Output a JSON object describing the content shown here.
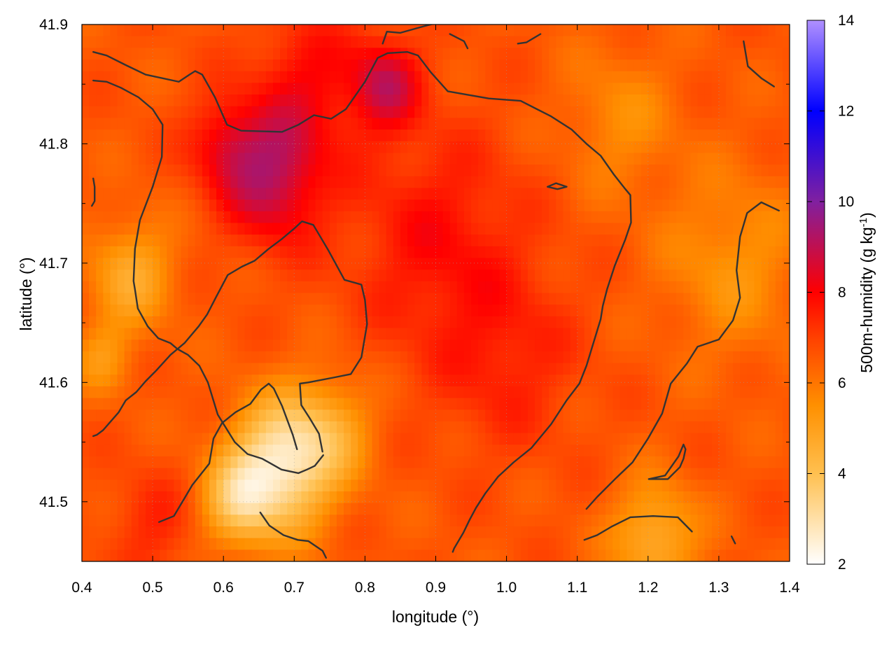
{
  "chart_data": {
    "type": "heatmap",
    "title": "",
    "xlabel": "longitude (°)",
    "ylabel": "latitude (°)",
    "colorbar_label": "500m-humidity (g kg",
    "colorbar_label_sup": "-1",
    "colorbar_label_end": ")",
    "xlim": [
      0.4,
      1.4
    ],
    "ylim": [
      41.45,
      41.9
    ],
    "clim": [
      2,
      14
    ],
    "xticks": [
      "0.4",
      "0.5",
      "0.6",
      "0.7",
      "0.8",
      "0.9",
      "1.0",
      "1.1",
      "1.2",
      "1.3",
      "1.4"
    ],
    "yticks": [
      "41.5",
      "41.6",
      "41.7",
      "41.8",
      "41.9"
    ],
    "cticks": [
      "2",
      "4",
      "6",
      "8",
      "10",
      "12",
      "14"
    ],
    "grid": true,
    "colormap": [
      {
        "v": 2,
        "c": "#ffffff"
      },
      {
        "v": 4,
        "c": "#ffc050"
      },
      {
        "v": 5.5,
        "c": "#ff9000"
      },
      {
        "v": 7,
        "c": "#ff4000"
      },
      {
        "v": 8,
        "c": "#ff0000"
      },
      {
        "v": 10,
        "c": "#8020a0"
      },
      {
        "v": 12,
        "c": "#0000ff"
      },
      {
        "v": 14,
        "c": "#b090ff"
      }
    ],
    "humidity_field": {
      "base": 6.6,
      "features": [
        {
          "lon": 0.67,
          "lat": 41.77,
          "r": 0.07,
          "amp": 2.4
        },
        {
          "lon": 0.83,
          "lat": 41.85,
          "r": 0.05,
          "amp": 2.0
        },
        {
          "lon": 0.6,
          "lat": 41.8,
          "r": 0.05,
          "amp": 1.4
        },
        {
          "lon": 0.72,
          "lat": 41.85,
          "r": 0.08,
          "amp": 1.3
        },
        {
          "lon": 0.9,
          "lat": 41.72,
          "r": 0.12,
          "amp": 1.2
        },
        {
          "lon": 1.0,
          "lat": 41.62,
          "r": 0.1,
          "amp": 0.9
        },
        {
          "lon": 0.68,
          "lat": 41.53,
          "r": 0.07,
          "amp": -3.8
        },
        {
          "lon": 0.62,
          "lat": 41.5,
          "r": 0.05,
          "amp": -2.2
        },
        {
          "lon": 0.75,
          "lat": 41.56,
          "r": 0.06,
          "amp": -1.6
        },
        {
          "lon": 0.47,
          "lat": 41.69,
          "r": 0.06,
          "amp": -1.8
        },
        {
          "lon": 0.43,
          "lat": 41.62,
          "r": 0.04,
          "amp": -1.2
        },
        {
          "lon": 1.21,
          "lat": 41.47,
          "r": 0.06,
          "amp": -2.0
        },
        {
          "lon": 1.32,
          "lat": 41.7,
          "r": 0.1,
          "amp": -1.2
        },
        {
          "lon": 1.16,
          "lat": 41.82,
          "r": 0.08,
          "amp": -1.0
        },
        {
          "lon": 0.5,
          "lat": 41.48,
          "r": 0.06,
          "amp": 0.8
        }
      ]
    },
    "contours": [
      [
        [
          0.416,
          41.877
        ],
        [
          0.435,
          41.874
        ],
        [
          0.462,
          41.866
        ],
        [
          0.49,
          41.858
        ],
        [
          0.537,
          41.852
        ],
        [
          0.552,
          41.858
        ],
        [
          0.56,
          41.861
        ],
        [
          0.57,
          41.858
        ],
        [
          0.588,
          41.839
        ],
        [
          0.605,
          41.816
        ],
        [
          0.625,
          41.811
        ],
        [
          0.683,
          41.81
        ],
        [
          0.706,
          41.816
        ],
        [
          0.728,
          41.824
        ],
        [
          0.752,
          41.821
        ],
        [
          0.773,
          41.829
        ],
        [
          0.8,
          41.852
        ],
        [
          0.818,
          41.872
        ],
        [
          0.832,
          41.876
        ],
        [
          0.86,
          41.877
        ],
        [
          0.875,
          41.874
        ],
        [
          0.893,
          41.86
        ],
        [
          0.917,
          41.844
        ],
        [
          0.975,
          41.838
        ],
        [
          1.02,
          41.836
        ],
        [
          1.063,
          41.823
        ],
        [
          1.092,
          41.812
        ],
        [
          1.113,
          41.8
        ],
        [
          1.133,
          41.79
        ],
        [
          1.152,
          41.774
        ],
        [
          1.168,
          41.762
        ],
        [
          1.175,
          41.757
        ],
        [
          1.176,
          41.734
        ],
        [
          1.168,
          41.72
        ],
        [
          1.153,
          41.698
        ],
        [
          1.142,
          41.678
        ],
        [
          1.136,
          41.664
        ],
        [
          1.133,
          41.653
        ],
        [
          1.113,
          41.614
        ],
        [
          1.103,
          41.599
        ],
        [
          1.085,
          41.585
        ],
        [
          1.063,
          41.565
        ],
        [
          1.035,
          41.545
        ],
        [
          1.01,
          41.533
        ],
        [
          0.988,
          41.521
        ],
        [
          0.97,
          41.507
        ],
        [
          0.957,
          41.495
        ],
        [
          0.948,
          41.485
        ],
        [
          0.939,
          41.474
        ],
        [
          0.926,
          41.461
        ],
        [
          0.924,
          41.458
        ]
      ],
      [
        [
          0.416,
          41.853
        ],
        [
          0.435,
          41.852
        ],
        [
          0.455,
          41.847
        ],
        [
          0.48,
          41.839
        ],
        [
          0.5,
          41.829
        ],
        [
          0.514,
          41.816
        ],
        [
          0.513,
          41.789
        ],
        [
          0.5,
          41.764
        ],
        [
          0.482,
          41.736
        ],
        [
          0.475,
          41.712
        ],
        [
          0.473,
          41.685
        ],
        [
          0.475,
          41.678
        ],
        [
          0.479,
          41.662
        ],
        [
          0.493,
          41.647
        ],
        [
          0.508,
          41.637
        ],
        [
          0.525,
          41.633
        ],
        [
          0.535,
          41.628
        ],
        [
          0.55,
          41.623
        ],
        [
          0.566,
          41.614
        ],
        [
          0.578,
          41.6
        ],
        [
          0.592,
          41.573
        ],
        [
          0.616,
          41.55
        ],
        [
          0.634,
          41.54
        ],
        [
          0.655,
          41.536
        ],
        [
          0.682,
          41.527
        ],
        [
          0.706,
          41.524
        ],
        [
          0.718,
          41.527
        ],
        [
          0.729,
          41.53
        ],
        [
          0.741,
          41.539
        ]
      ],
      [
        [
          0.416,
          41.771
        ],
        [
          0.418,
          41.764
        ],
        [
          0.418,
          41.752
        ],
        [
          0.414,
          41.748
        ]
      ],
      [
        [
          0.416,
          41.555
        ],
        [
          0.421,
          41.556
        ],
        [
          0.43,
          41.56
        ],
        [
          0.452,
          41.575
        ],
        [
          0.462,
          41.585
        ],
        [
          0.477,
          41.592
        ],
        [
          0.49,
          41.601
        ],
        [
          0.505,
          41.61
        ],
        [
          0.525,
          41.623
        ],
        [
          0.545,
          41.633
        ],
        [
          0.565,
          41.647
        ],
        [
          0.577,
          41.657
        ],
        [
          0.59,
          41.672
        ],
        [
          0.606,
          41.69
        ],
        [
          0.626,
          41.697
        ],
        [
          0.644,
          41.702
        ],
        [
          0.664,
          41.712
        ],
        [
          0.682,
          41.72
        ],
        [
          0.7,
          41.729
        ],
        [
          0.711,
          41.735
        ],
        [
          0.727,
          41.732
        ],
        [
          0.748,
          41.711
        ],
        [
          0.771,
          41.686
        ],
        [
          0.795,
          41.682
        ],
        [
          0.8,
          41.669
        ],
        [
          0.803,
          41.649
        ],
        [
          0.795,
          41.621
        ],
        [
          0.78,
          41.607
        ],
        [
          0.755,
          41.604
        ],
        [
          0.72,
          41.6
        ],
        [
          0.708,
          41.599
        ],
        [
          0.71,
          41.581
        ],
        [
          0.722,
          41.57
        ],
        [
          0.735,
          41.557
        ],
        [
          0.74,
          41.542
        ]
      ],
      [
        [
          0.509,
          41.483
        ],
        [
          0.53,
          41.488
        ],
        [
          0.541,
          41.499
        ],
        [
          0.556,
          41.514
        ],
        [
          0.58,
          41.532
        ],
        [
          0.586,
          41.553
        ],
        [
          0.598,
          41.566
        ],
        [
          0.617,
          41.575
        ],
        [
          0.638,
          41.582
        ],
        [
          0.653,
          41.594
        ],
        [
          0.664,
          41.599
        ],
        [
          0.671,
          41.595
        ],
        [
          0.683,
          41.58
        ],
        [
          0.698,
          41.556
        ],
        [
          0.704,
          41.544
        ]
      ],
      [
        [
          0.652,
          41.491
        ],
        [
          0.665,
          41.48
        ],
        [
          0.685,
          41.472
        ],
        [
          0.705,
          41.468
        ],
        [
          0.72,
          41.467
        ],
        [
          0.74,
          41.459
        ],
        [
          0.745,
          41.453
        ]
      ],
      [
        [
          0.825,
          41.884
        ],
        [
          0.831,
          41.894
        ],
        [
          0.85,
          41.893
        ],
        [
          0.88,
          41.898
        ],
        [
          0.905,
          41.902
        ]
      ],
      [
        [
          0.92,
          41.892
        ],
        [
          0.94,
          41.886
        ],
        [
          0.945,
          41.88
        ]
      ],
      [
        [
          1.016,
          41.884
        ],
        [
          1.028,
          41.885
        ],
        [
          1.048,
          41.892
        ]
      ],
      [
        [
          1.335,
          41.886
        ],
        [
          1.341,
          41.865
        ],
        [
          1.36,
          41.855
        ],
        [
          1.378,
          41.848
        ]
      ],
      [
        [
          1.058,
          41.764
        ],
        [
          1.07,
          41.767
        ],
        [
          1.085,
          41.764
        ],
        [
          1.072,
          41.762
        ],
        [
          1.058,
          41.764
        ]
      ],
      [
        [
          1.201,
          41.519
        ],
        [
          1.228,
          41.519
        ],
        [
          1.245,
          41.529
        ],
        [
          1.25,
          41.536
        ],
        [
          1.253,
          41.544
        ],
        [
          1.25,
          41.548
        ],
        [
          1.243,
          41.538
        ],
        [
          1.224,
          41.522
        ],
        [
          1.201,
          41.519
        ]
      ],
      [
        [
          1.385,
          41.744
        ],
        [
          1.36,
          41.751
        ],
        [
          1.34,
          41.742
        ],
        [
          1.33,
          41.722
        ],
        [
          1.325,
          41.694
        ],
        [
          1.33,
          41.671
        ],
        [
          1.32,
          41.652
        ],
        [
          1.3,
          41.636
        ],
        [
          1.27,
          41.63
        ],
        [
          1.255,
          41.616
        ],
        [
          1.232,
          41.599
        ],
        [
          1.22,
          41.574
        ],
        [
          1.2,
          41.553
        ],
        [
          1.178,
          41.533
        ],
        [
          1.155,
          41.52
        ],
        [
          1.128,
          41.504
        ],
        [
          1.113,
          41.494
        ]
      ],
      [
        [
          1.11,
          41.468
        ],
        [
          1.128,
          41.472
        ],
        [
          1.148,
          41.479
        ],
        [
          1.175,
          41.487
        ],
        [
          1.207,
          41.488
        ],
        [
          1.242,
          41.487
        ],
        [
          1.262,
          41.475
        ]
      ],
      [
        [
          1.318,
          41.471
        ],
        [
          1.323,
          41.465
        ]
      ]
    ]
  }
}
